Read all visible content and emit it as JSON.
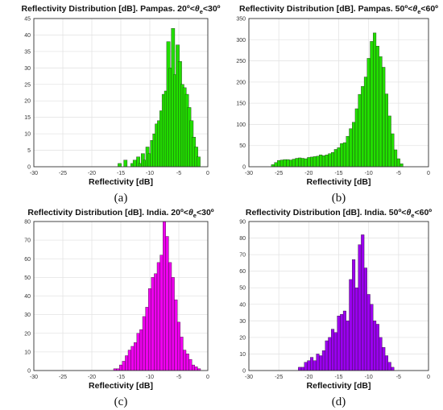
{
  "chart_data": [
    {
      "type": "bar",
      "title": "Reflectivity Distribution [dB]. Pampas. 20º<θe<30º",
      "title_main": "Reflectivity Distribution [dB]. Pampas. 20º<",
      "title_theta": "θ",
      "title_sub": "e",
      "title_end": "<30º",
      "xlabel": "Reflectivity [dB]",
      "caption": "(a)",
      "xlim": [
        -30,
        0
      ],
      "ylim": [
        0,
        45
      ],
      "xticks": [
        "-30",
        "-25",
        "-20",
        "-15",
        "-10",
        "-5",
        "0"
      ],
      "yticks": [
        "0",
        "5",
        "10",
        "15",
        "20",
        "25",
        "30",
        "35",
        "40",
        "45"
      ],
      "grid": true,
      "color": "#22dd00",
      "x": [
        -15.2,
        -14.6,
        -14.2,
        -13.0,
        -12.6,
        -12.0,
        -11.6,
        -11.2,
        -10.8,
        -10.4,
        -10.0,
        -9.6,
        -9.2,
        -8.8,
        -8.4,
        -8.0,
        -7.6,
        -7.2,
        -6.8,
        -6.4,
        -6.0,
        -5.6,
        -5.2,
        -4.8,
        -4.4,
        -4.0,
        -3.6,
        -3.2,
        -2.8,
        -2.4,
        -2.0,
        -1.6
      ],
      "values": [
        1,
        0,
        2,
        1,
        2,
        3,
        1,
        4,
        2,
        6,
        4,
        8,
        10,
        13,
        14,
        17,
        22,
        23,
        38,
        30,
        42,
        28,
        37,
        32,
        25,
        24,
        22,
        18,
        14,
        9,
        6,
        3
      ]
    },
    {
      "type": "bar",
      "title": "Reflectivity Distribution [dB]. Pampas. 50º<θe<60º",
      "title_main": "Reflectivity Distribution [dB]. Pampas. 50º<",
      "title_theta": "θ",
      "title_sub": "e",
      "title_end": "<60º",
      "xlabel": "Reflectivity [dB]",
      "caption": "(b)",
      "xlim": [
        -30,
        0
      ],
      "ylim": [
        0,
        350
      ],
      "xticks": [
        "-30",
        "-25",
        "-20",
        "-15",
        "-10",
        "-5",
        "0"
      ],
      "yticks": [
        "0",
        "50",
        "100",
        "150",
        "200",
        "250",
        "300",
        "350"
      ],
      "grid": true,
      "color": "#22dd00",
      "x": [
        -26.0,
        -25.5,
        -25.0,
        -24.5,
        -24.0,
        -23.5,
        -23.0,
        -22.5,
        -22.0,
        -21.5,
        -21.0,
        -20.5,
        -20.0,
        -19.5,
        -19.0,
        -18.5,
        -18.0,
        -17.5,
        -17.0,
        -16.5,
        -16.0,
        -15.5,
        -15.0,
        -14.5,
        -14.0,
        -13.5,
        -13.0,
        -12.5,
        -12.0,
        -11.5,
        -11.0,
        -10.5,
        -10.0,
        -9.5,
        -9.0,
        -8.5,
        -8.0,
        -7.5,
        -7.0,
        -6.5,
        -6.0,
        -5.5,
        -5.0,
        -4.5
      ],
      "values": [
        5,
        10,
        15,
        16,
        17,
        17,
        16,
        18,
        20,
        21,
        20,
        19,
        22,
        23,
        24,
        25,
        28,
        26,
        28,
        31,
        34,
        41,
        45,
        55,
        57,
        72,
        90,
        105,
        137,
        171,
        190,
        212,
        256,
        296,
        316,
        285,
        260,
        235,
        172,
        120,
        78,
        40,
        19,
        7
      ]
    },
    {
      "type": "bar",
      "title": "Reflectivity Distribution [dB]. India. 20º<θe<30º",
      "title_main": "Reflectivity Distribution [dB]. India. 20º<",
      "title_theta": "θ",
      "title_sub": "e",
      "title_end": "<30º",
      "xlabel": "Reflectivity [dB]",
      "caption": "(c)",
      "xlim": [
        -30,
        0
      ],
      "ylim": [
        0,
        80
      ],
      "xticks": [
        "-30",
        "-25",
        "-20",
        "-15",
        "-10",
        "-5",
        "0"
      ],
      "yticks": [
        "0",
        "10",
        "20",
        "30",
        "40",
        "50",
        "60",
        "70",
        "80"
      ],
      "grid": true,
      "color": "#ee00ee",
      "x": [
        -16.0,
        -15.5,
        -15.0,
        -14.5,
        -14.0,
        -13.5,
        -13.0,
        -12.5,
        -12.0,
        -11.5,
        -11.0,
        -10.5,
        -10.0,
        -9.5,
        -9.0,
        -8.5,
        -8.0,
        -7.5,
        -7.0,
        -6.5,
        -6.0,
        -5.5,
        -5.0,
        -4.5,
        -4.0,
        -3.5,
        -3.0,
        -2.5,
        -2.0,
        -1.5
      ],
      "values": [
        1,
        1,
        3,
        5,
        8,
        11,
        13,
        15,
        20,
        22,
        29,
        34,
        44,
        50,
        52,
        58,
        62,
        80,
        72,
        58,
        50,
        38,
        26,
        18,
        11,
        9,
        6,
        3,
        2,
        1
      ]
    },
    {
      "type": "bar",
      "title": "Reflectivity Distribution [dB]. India. 50º<θe<60º",
      "title_main": "Reflectivity Distribution [dB]. India. 50º<",
      "title_theta": "θ",
      "title_sub": "e",
      "title_end": "<60º",
      "xlabel": "Reflectivity [dB]",
      "caption": "(d)",
      "xlim": [
        -30,
        0
      ],
      "ylim": [
        0,
        90
      ],
      "xticks": [
        "-30",
        "-25",
        "-20",
        "-15",
        "-10",
        "-5",
        "0"
      ],
      "yticks": [
        "0",
        "10",
        "20",
        "30",
        "40",
        "50",
        "60",
        "70",
        "80",
        "90"
      ],
      "grid": true,
      "color": "#9a00ee",
      "x": [
        -21.5,
        -21.0,
        -20.5,
        -20.0,
        -19.5,
        -19.0,
        -18.5,
        -18.0,
        -17.5,
        -17.0,
        -16.5,
        -16.0,
        -15.5,
        -15.0,
        -14.5,
        -14.0,
        -13.5,
        -13.0,
        -12.5,
        -12.0,
        -11.5,
        -11.0,
        -10.5,
        -10.0,
        -9.5,
        -9.0,
        -8.5,
        -8.0,
        -7.5,
        -7.0,
        -6.5,
        -6.0
      ],
      "values": [
        2,
        2,
        5,
        6,
        8,
        6,
        10,
        9,
        12,
        18,
        20,
        25,
        23,
        33,
        34,
        36,
        30,
        55,
        67,
        50,
        76,
        82,
        62,
        46,
        40,
        30,
        28,
        20,
        14,
        9,
        5,
        2
      ]
    }
  ]
}
